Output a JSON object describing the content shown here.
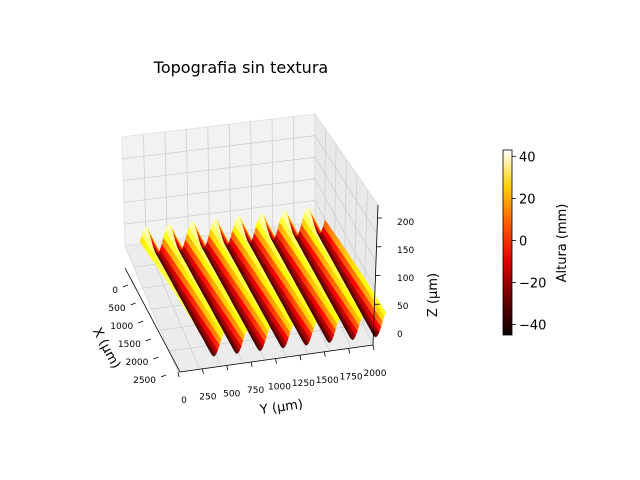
{
  "chart_data": {
    "type": "surface3d",
    "title": "Topografia sin textura",
    "xlabel": "X (μm)",
    "ylabel": "Y (μm)",
    "zlabel": "Z (μm)",
    "x_ticks": [
      "0",
      "500",
      "1000",
      "1500",
      "2000",
      "2500"
    ],
    "y_ticks": [
      "0",
      "250",
      "500",
      "750",
      "1000",
      "1250",
      "1500",
      "1750",
      "2000"
    ],
    "z_ticks": [
      "0",
      "50",
      "100",
      "150",
      "200"
    ],
    "xlim": [
      0,
      2500
    ],
    "ylim": [
      0,
      2000
    ],
    "zlim": [
      0,
      200
    ],
    "surface": {
      "colormap": "hot",
      "ridge_count": 8,
      "height_range": [
        -42,
        42
      ]
    },
    "colorbar": {
      "label": "Altura (mm)",
      "ticks": [
        "40",
        "20",
        "0",
        "−20",
        "−40"
      ],
      "range": [
        -45,
        43
      ]
    },
    "grid": true
  }
}
